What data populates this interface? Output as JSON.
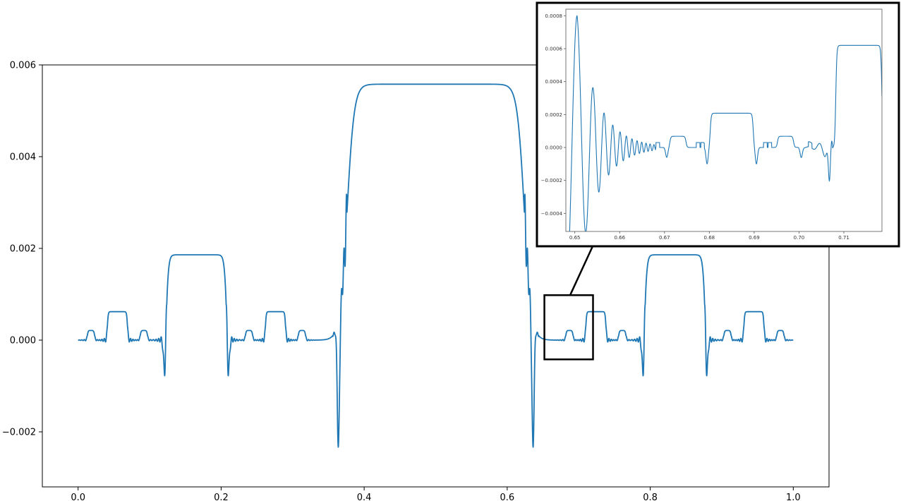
{
  "chart_data": [
    {
      "type": "line",
      "title": "",
      "xlabel": "",
      "ylabel": "",
      "xlim": [
        -0.05,
        1.05
      ],
      "ylim": [
        -0.0032,
        0.006
      ],
      "xticks": [
        0.0,
        0.2,
        0.4,
        0.6,
        0.8,
        1.0
      ],
      "xtick_labels": [
        "0.0",
        "0.2",
        "0.4",
        "0.6",
        "0.8",
        "1.0"
      ],
      "yticks": [
        -0.002,
        0.0,
        0.002,
        0.004,
        0.006
      ],
      "ytick_labels": [
        "−0.002",
        "0.000",
        "0.002",
        "0.004",
        "0.006"
      ],
      "grid": false,
      "color": "#1f77b4",
      "series": [
        {
          "plateaus": [
            {
              "x0": 0.013,
              "x1": 0.023,
              "y": 0.00021
            },
            {
              "x0": 0.041,
              "x1": 0.069,
              "y": 0.00062
            },
            {
              "x0": 0.087,
              "x1": 0.097,
              "y": 0.00021
            },
            {
              "x0": 0.124,
              "x1": 0.207,
              "y": 0.00186
            },
            {
              "x0": 0.234,
              "x1": 0.244,
              "y": 0.00021
            },
            {
              "x0": 0.262,
              "x1": 0.29,
              "y": 0.00062
            },
            {
              "x0": 0.308,
              "x1": 0.318,
              "y": 0.00021
            },
            {
              "x0": 0.376,
              "x1": 0.624,
              "y": 0.00558
            },
            {
              "x0": 0.682,
              "x1": 0.692,
              "y": 0.00021
            },
            {
              "x0": 0.71,
              "x1": 0.738,
              "y": 0.00062
            },
            {
              "x0": 0.756,
              "x1": 0.766,
              "y": 0.00021
            },
            {
              "x0": 0.793,
              "x1": 0.876,
              "y": 0.00186
            },
            {
              "x0": 0.903,
              "x1": 0.913,
              "y": 0.00021
            },
            {
              "x0": 0.931,
              "x1": 0.959,
              "y": 0.00062
            },
            {
              "x0": 0.977,
              "x1": 0.987,
              "y": 0.00021
            }
          ],
          "dips": [
            {
              "x": 0.121,
              "y": -0.00093
            },
            {
              "x": 0.21,
              "y": -0.00093
            },
            {
              "x": 0.364,
              "y": -0.0028
            },
            {
              "x": 0.636,
              "y": -0.0028
            },
            {
              "x": 0.79,
              "y": -0.00093
            },
            {
              "x": 0.879,
              "y": -0.00093
            }
          ]
        }
      ]
    },
    {
      "type": "line",
      "title": "",
      "xlim": [
        0.648,
        0.7185
      ],
      "ylim": [
        -0.00051,
        0.00084
      ],
      "xticks": [
        0.65,
        0.66,
        0.67,
        0.68,
        0.69,
        0.7,
        0.71
      ],
      "xtick_labels": [
        "0.65",
        "0.66",
        "0.67",
        "0.68",
        "0.69",
        "0.70",
        "0.71"
      ],
      "yticks": [
        -0.0004,
        -0.0002,
        0.0,
        0.0002,
        0.0004,
        0.0006,
        0.0008
      ],
      "ytick_labels": [
        "−0.0004",
        "−0.0002",
        "0.0000",
        "0.0002",
        "0.0004",
        "0.0006",
        "0.0008"
      ],
      "grid": false,
      "color": "#1f77b4",
      "zoom_region": {
        "x": [
          0.652,
          0.72
        ],
        "y": [
          -0.00042,
          0.00098
        ]
      },
      "series": [
        {
          "plateaus": [
            {
              "x0": 0.6712,
              "x1": 0.6748,
              "y": 6.8e-05
            },
            {
              "x0": 0.6802,
              "x1": 0.6898,
              "y": 0.000208
            },
            {
              "x0": 0.6952,
              "x1": 0.6988,
              "y": 6.8e-05
            },
            {
              "x0": 0.7082,
              "x1": 0.7185,
              "y": 0.00062
            }
          ],
          "oscillation_peaks": [
            {
              "x": 0.6505,
              "y": 0.0008
            },
            {
              "x": 0.6525,
              "y": -0.00051
            },
            {
              "x": 0.6545,
              "y": 0.00047
            },
            {
              "x": 0.6562,
              "y": -0.00037
            },
            {
              "x": 0.6573,
              "y": 0.0003
            }
          ],
          "dips": [
            {
              "x": 0.6705,
              "y": -6e-05
            },
            {
              "x": 0.6795,
              "y": -0.0001
            },
            {
              "x": 0.6905,
              "y": -0.0001
            },
            {
              "x": 0.7005,
              "y": -6e-05
            },
            {
              "x": 0.7068,
              "y": -0.00031
            }
          ]
        }
      ]
    }
  ]
}
